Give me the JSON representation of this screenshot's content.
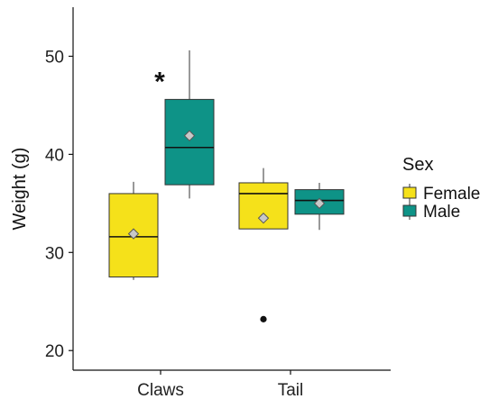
{
  "chart_data": {
    "type": "boxplot",
    "categories": [
      "Claws",
      "Tail"
    ],
    "ylabel": "Weight (g)",
    "xlabel": "",
    "ylim": [
      18,
      55
    ],
    "yticks": [
      20,
      30,
      40,
      50
    ],
    "legend": {
      "title": "Sex",
      "position": "right"
    },
    "series": [
      {
        "name": "Female",
        "color": "#F5E11A",
        "boxes": [
          {
            "category": "Claws",
            "min": 27.2,
            "q1": 27.5,
            "median": 31.6,
            "q3": 36.0,
            "max": 37.2,
            "mean": 31.9,
            "outliers": []
          },
          {
            "category": "Tail",
            "min": 32.4,
            "q1": 32.4,
            "median": 36.0,
            "q3": 37.1,
            "max": 38.6,
            "mean": 33.5,
            "outliers": [
              23.2
            ]
          }
        ]
      },
      {
        "name": "Male",
        "color": "#0E9387",
        "boxes": [
          {
            "category": "Claws",
            "min": 35.5,
            "q1": 36.9,
            "median": 40.7,
            "q3": 45.6,
            "max": 50.6,
            "mean": 41.9,
            "outliers": []
          },
          {
            "category": "Tail",
            "min": 32.3,
            "q1": 33.9,
            "median": 35.3,
            "q3": 36.4,
            "max": 37.1,
            "mean": 35.0,
            "outliers": []
          }
        ]
      }
    ],
    "annotations": [
      {
        "text": "*",
        "category": "Claws",
        "series": "Male",
        "y": 47.8
      }
    ],
    "grid": false
  }
}
